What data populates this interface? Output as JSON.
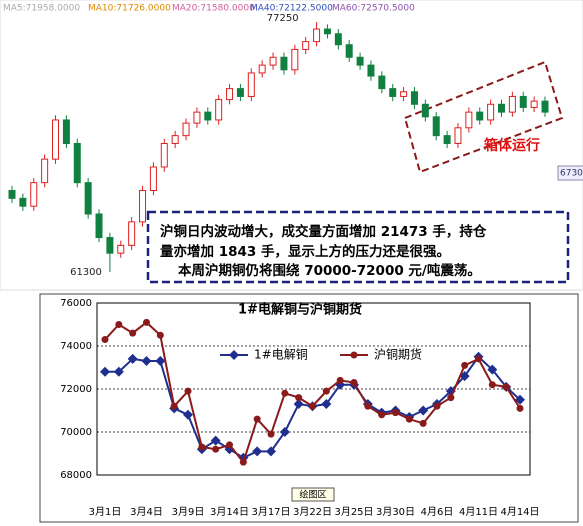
{
  "chart_data": [
    {
      "type": "candlestick",
      "legend": [
        {
          "name": "MA5:71958.0000",
          "color": "#aaaaaa"
        },
        {
          "name": "MA10:71726.0000",
          "color": "#e08a00"
        },
        {
          "name": "MA20:71580.0000",
          "color": "#d060a0"
        },
        {
          "name": "MA40:72122.5000",
          "color": "#3050c0"
        },
        {
          "name": "MA60:72570.5000",
          "color": "#9050b0"
        }
      ],
      "box_label": "箱体运行",
      "edge_label": "6730",
      "note": [
        "沪铜日内波动增大，成交量方面增加 21473 手，持仓",
        "量亦增加 1843 手，显示上方的压力还是很强。",
        "本周沪期铜仍将围绕 70000-72000 元/吨震荡。"
      ],
      "open": [
        66500,
        66000,
        65500,
        67000,
        68500,
        71000,
        69500,
        67000,
        65000,
        63500,
        62500,
        63000,
        64500,
        66500,
        68000,
        69500,
        70000,
        70800,
        71500,
        71000,
        72300,
        73000,
        72500,
        74000,
        74500,
        75000,
        74200,
        75500,
        76000,
        76800,
        76500,
        75800,
        75000,
        74500,
        73800,
        73000,
        72500,
        72800,
        72000,
        71200,
        70000,
        69500,
        70500,
        71500,
        71000,
        72000,
        71500,
        72500,
        71800,
        72200
      ],
      "high": [
        66800,
        66300,
        67300,
        68800,
        71300,
        71300,
        69800,
        67300,
        65300,
        63800,
        63300,
        64800,
        66800,
        68300,
        69800,
        70300,
        71100,
        71800,
        71800,
        72600,
        73300,
        73300,
        74300,
        74800,
        75300,
        75300,
        75800,
        76300,
        77250,
        77100,
        76800,
        76100,
        75300,
        74800,
        74100,
        73300,
        73100,
        73100,
        72300,
        71500,
        70300,
        70800,
        71800,
        71800,
        72300,
        72300,
        72800,
        72800,
        72500,
        72500
      ],
      "low": [
        65700,
        65200,
        65200,
        66700,
        68200,
        69200,
        66700,
        64700,
        63200,
        61300,
        62200,
        62700,
        64200,
        66200,
        67700,
        69200,
        69700,
        70500,
        70700,
        70700,
        72000,
        72200,
        72200,
        73700,
        74200,
        73900,
        73900,
        75200,
        75700,
        76200,
        75500,
        74700,
        74200,
        73500,
        72700,
        72200,
        72200,
        71700,
        70900,
        69700,
        69200,
        69200,
        70200,
        70700,
        70700,
        71200,
        71200,
        71500,
        71500,
        71200
      ],
      "close": [
        66000,
        65500,
        67000,
        68500,
        71000,
        69500,
        67000,
        65000,
        63500,
        62500,
        63000,
        64500,
        66500,
        68000,
        69500,
        70000,
        70800,
        71500,
        71000,
        72300,
        73000,
        72500,
        74000,
        74500,
        75000,
        74200,
        75500,
        76000,
        76800,
        76500,
        75800,
        75000,
        74500,
        73800,
        73000,
        72500,
        72800,
        72000,
        71200,
        70000,
        69500,
        70500,
        71500,
        71000,
        72000,
        71500,
        72500,
        71800,
        72200,
        71500
      ],
      "up_color": "#e02020",
      "down_color": "#108040"
    },
    {
      "type": "line",
      "title": "1#电解铜与沪铜期货",
      "plot_area_label": "绘图区",
      "categories": [
        "3月1日",
        null,
        null,
        "3月4日",
        null,
        null,
        "3月9日",
        null,
        null,
        "3月14日",
        null,
        null,
        "3月17日",
        null,
        null,
        "3月22日",
        null,
        null,
        "3月25日",
        null,
        null,
        "3月30日",
        null,
        null,
        "4月6日",
        null,
        null,
        "4月11日",
        null,
        null,
        "4月14日"
      ],
      "series": [
        {
          "name": "1#电解铜",
          "color": "#1f2f8f",
          "marker": "diamond",
          "values": [
            72800,
            72800,
            73400,
            73300,
            73300,
            71100,
            70800,
            69200,
            69600,
            69200,
            68800,
            69100,
            69100,
            70000,
            71300,
            71200,
            71300,
            72200,
            72200,
            71300,
            70900,
            71000,
            70700,
            71000,
            71300,
            71900,
            72600,
            73500,
            72900,
            72100,
            71500
          ]
        },
        {
          "name": "沪铜期货",
          "color": "#8b1a1a",
          "marker": "circle",
          "values": [
            74300,
            75000,
            74600,
            75100,
            74500,
            71200,
            71900,
            69300,
            69200,
            69400,
            68600,
            70600,
            69900,
            71800,
            71600,
            71200,
            71900,
            72400,
            72300,
            71200,
            70800,
            70900,
            70600,
            70400,
            71200,
            71600,
            73100,
            73400,
            72200,
            72100,
            71100
          ]
        }
      ],
      "ylim": [
        68000,
        76000
      ],
      "yticks": [
        68000,
        70000,
        72000,
        74000,
        76000
      ],
      "grid": true
    }
  ]
}
